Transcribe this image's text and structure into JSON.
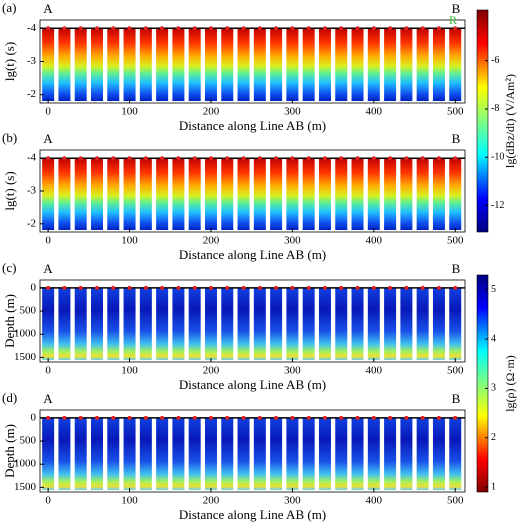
{
  "chart_data": [
    {
      "type": "heatmap",
      "panel": "(a)",
      "start": "A",
      "end": "B",
      "annotation": "R",
      "xlabel": "Distance along Line AB (m)",
      "ylabel": "lg(t) (s)",
      "xlim": [
        -10,
        512
      ],
      "xticks": [
        0,
        100,
        200,
        300,
        400,
        500
      ],
      "ylim": [
        -1.75,
        -4.25
      ],
      "yticks": [
        -4,
        -3,
        -2
      ],
      "x": [
        0,
        20,
        40,
        60,
        80,
        100,
        120,
        140,
        160,
        180,
        200,
        220,
        240,
        260,
        280,
        300,
        320,
        340,
        360,
        380,
        400,
        420,
        440,
        460,
        480,
        500
      ],
      "colorbar": {
        "label": "lg(dBz/dt) (V/Am²)",
        "clim": [
          -13.1,
          -3.9
        ],
        "ticks": [
          -6,
          -8,
          -10,
          -12
        ]
      }
    },
    {
      "type": "heatmap",
      "panel": "(b)",
      "start": "A",
      "end": "B",
      "xlabel": "Distance along Line AB (m)",
      "ylabel": "lg(t) (s)",
      "xlim": [
        -10,
        512
      ],
      "xticks": [
        0,
        100,
        200,
        300,
        400,
        500
      ],
      "ylim": [
        -1.75,
        -4.25
      ],
      "yticks": [
        -4,
        -3,
        -2
      ],
      "x": [
        0,
        20,
        40,
        60,
        80,
        100,
        120,
        140,
        160,
        180,
        200,
        220,
        240,
        260,
        280,
        300,
        320,
        340,
        360,
        380,
        400,
        420,
        440,
        460,
        480,
        500
      ]
    },
    {
      "type": "heatmap",
      "panel": "(c)",
      "start": "A",
      "end": "B",
      "xlabel": "Distance along Line AB (m)",
      "ylabel": "Depth (m)",
      "xlim": [
        -10,
        512
      ],
      "xticks": [
        0,
        100,
        200,
        300,
        400,
        500
      ],
      "ylim": [
        1600,
        -170
      ],
      "yticks": [
        0,
        500,
        1000,
        1500
      ],
      "x": [
        0,
        20,
        40,
        60,
        80,
        100,
        120,
        140,
        160,
        180,
        200,
        220,
        240,
        260,
        280,
        300,
        320,
        340,
        360,
        380,
        400,
        420,
        440,
        460,
        480,
        500
      ],
      "colorbar": {
        "label": "lg(ρ) (Ω·m)",
        "clim": [
          0.9,
          5.3
        ],
        "ticks": [
          5,
          4,
          3,
          2,
          1
        ]
      }
    },
    {
      "type": "heatmap",
      "panel": "(d)",
      "start": "A",
      "end": "B",
      "xlabel": "Distance along Line AB (m)",
      "ylabel": "Depth (m)",
      "xlim": [
        -10,
        512
      ],
      "xticks": [
        0,
        100,
        200,
        300,
        400,
        500
      ],
      "ylim": [
        1600,
        -170
      ],
      "yticks": [
        0,
        500,
        1000,
        1500
      ],
      "x": [
        0,
        20,
        40,
        60,
        80,
        100,
        120,
        140,
        160,
        180,
        200,
        220,
        240,
        260,
        280,
        300,
        320,
        340,
        360,
        380,
        400,
        420,
        440,
        460,
        480,
        500
      ]
    }
  ]
}
